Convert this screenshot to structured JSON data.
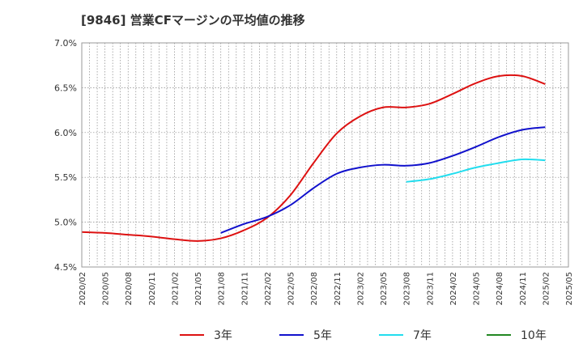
{
  "chart_data": {
    "type": "line",
    "title": "[9846]  営業CFマージンの平均値の推移",
    "xlabel": "",
    "ylabel": "",
    "ylim": [
      4.5,
      7.0
    ],
    "yticks": [
      "4.5%",
      "5.0%",
      "5.5%",
      "6.0%",
      "6.5%",
      "7.0%"
    ],
    "xticks": [
      "2020/02",
      "2020/05",
      "2020/08",
      "2020/11",
      "2021/02",
      "2021/05",
      "2021/08",
      "2021/11",
      "2022/02",
      "2022/05",
      "2022/08",
      "2022/11",
      "2023/02",
      "2023/05",
      "2023/08",
      "2023/11",
      "2024/02",
      "2024/05",
      "2024/08",
      "2024/11",
      "2025/02",
      "2025/05"
    ],
    "grid": true,
    "legend_position": "bottom",
    "series": [
      {
        "name": "3年",
        "color": "#dd1111",
        "points": [
          [
            "2020/02",
            4.89
          ],
          [
            "2020/05",
            4.88
          ],
          [
            "2020/08",
            4.86
          ],
          [
            "2020/11",
            4.84
          ],
          [
            "2021/02",
            4.81
          ],
          [
            "2021/05",
            4.79
          ],
          [
            "2021/08",
            4.82
          ],
          [
            "2021/11",
            4.91
          ],
          [
            "2022/02",
            5.05
          ],
          [
            "2022/05",
            5.3
          ],
          [
            "2022/08",
            5.66
          ],
          [
            "2022/11",
            5.99
          ],
          [
            "2023/02",
            6.18
          ],
          [
            "2023/05",
            6.28
          ],
          [
            "2023/08",
            6.28
          ],
          [
            "2023/11",
            6.32
          ],
          [
            "2024/02",
            6.43
          ],
          [
            "2024/05",
            6.55
          ],
          [
            "2024/08",
            6.63
          ],
          [
            "2024/11",
            6.63
          ],
          [
            "2025/02",
            6.54
          ]
        ]
      },
      {
        "name": "5年",
        "color": "#1111cc",
        "points": [
          [
            "2021/08",
            4.88
          ],
          [
            "2021/11",
            4.98
          ],
          [
            "2022/02",
            5.06
          ],
          [
            "2022/05",
            5.19
          ],
          [
            "2022/08",
            5.38
          ],
          [
            "2022/11",
            5.54
          ],
          [
            "2023/02",
            5.61
          ],
          [
            "2023/05",
            5.64
          ],
          [
            "2023/08",
            5.63
          ],
          [
            "2023/11",
            5.66
          ],
          [
            "2024/02",
            5.74
          ],
          [
            "2024/05",
            5.84
          ],
          [
            "2024/08",
            5.95
          ],
          [
            "2024/11",
            6.03
          ],
          [
            "2025/02",
            6.06
          ]
        ]
      },
      {
        "name": "7年",
        "color": "#22ddee",
        "points": [
          [
            "2023/08",
            5.45
          ],
          [
            "2023/11",
            5.48
          ],
          [
            "2024/02",
            5.54
          ],
          [
            "2024/05",
            5.61
          ],
          [
            "2024/08",
            5.66
          ],
          [
            "2024/11",
            5.7
          ],
          [
            "2025/02",
            5.69
          ]
        ]
      },
      {
        "name": "10年",
        "color": "#228822",
        "points": []
      }
    ]
  }
}
